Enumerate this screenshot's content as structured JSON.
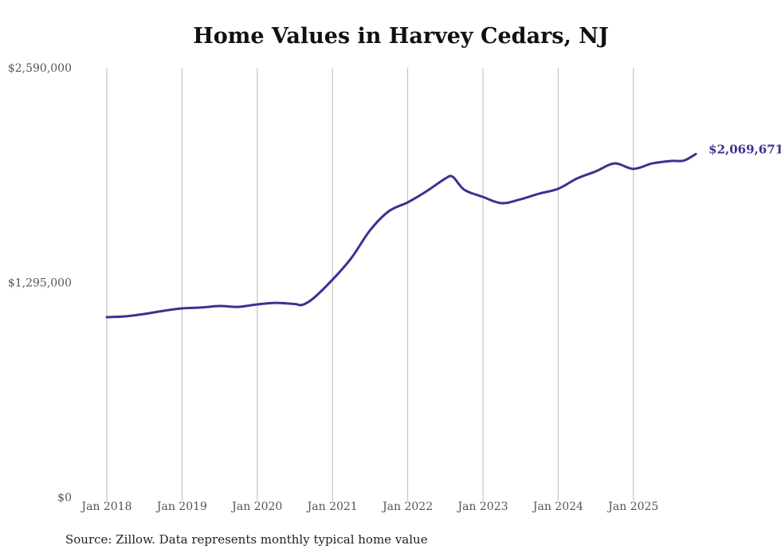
{
  "chart_data": {
    "type": "line",
    "title": "Home Values in Harvey Cedars, NJ",
    "xlabel": "",
    "ylabel": "",
    "ylim": [
      0,
      2590000
    ],
    "y_ticks": [
      0,
      1295000,
      2590000
    ],
    "y_tick_labels": [
      "$0",
      "$1,295,000",
      "$2,590,000"
    ],
    "x_tick_labels": [
      "Jan 2018",
      "Jan 2019",
      "Jan 2020",
      "Jan 2021",
      "Jan 2022",
      "Jan 2023",
      "Jan 2024",
      "Jan 2025"
    ],
    "x_ticks": [
      2018,
      2019,
      2020,
      2021,
      2022,
      2023,
      2024,
      2025
    ],
    "grid": "vertical",
    "series": [
      {
        "name": "Typical home value",
        "color": "#3b3291",
        "x": [
          2018,
          2018.25,
          2018.5,
          2018.75,
          2019,
          2019.25,
          2019.5,
          2019.75,
          2020,
          2020.25,
          2020.5,
          2020.6,
          2020.75,
          2021,
          2021.25,
          2021.5,
          2021.75,
          2022,
          2022.25,
          2022.5,
          2022.6,
          2022.75,
          2023,
          2023.25,
          2023.5,
          2023.75,
          2024,
          2024.25,
          2024.5,
          2024.75,
          2025,
          2025.25,
          2025.5,
          2025.67,
          2025.83
        ],
        "values": [
          1086000,
          1091000,
          1105000,
          1124000,
          1139000,
          1144000,
          1153000,
          1148000,
          1163000,
          1172000,
          1165000,
          1160000,
          1201000,
          1312000,
          1442000,
          1610000,
          1725000,
          1778000,
          1845000,
          1922000,
          1932000,
          1855000,
          1811000,
          1773000,
          1797000,
          1831000,
          1860000,
          1922000,
          1965000,
          2013000,
          1980000,
          2013000,
          2028000,
          2030000,
          2069671
        ]
      }
    ],
    "end_label": "$2,069,671",
    "source": "Source: Zillow. Data represents monthly typical home value"
  }
}
